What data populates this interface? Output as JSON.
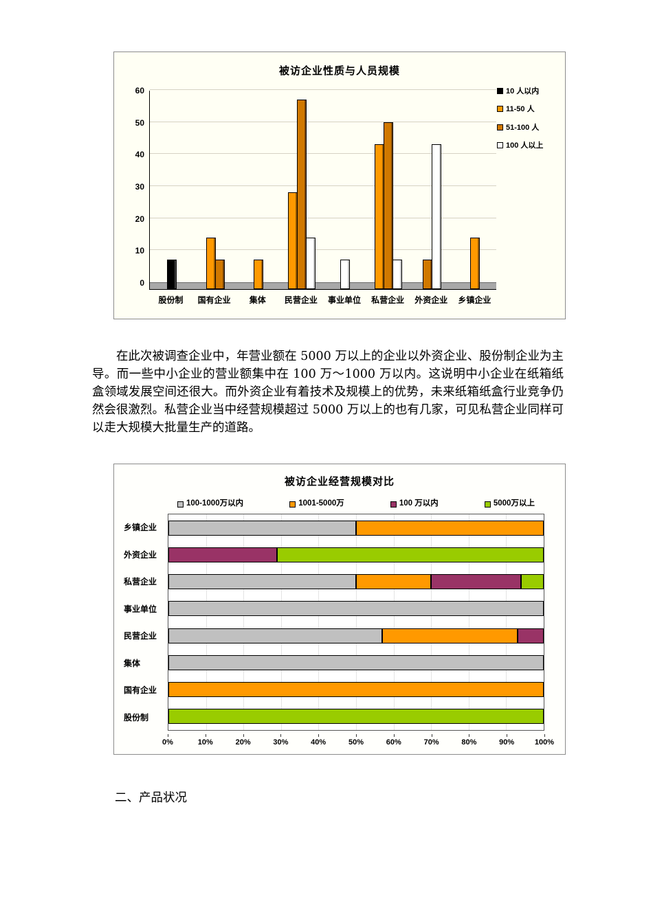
{
  "document": {
    "paragraph": "在此次被调查企业中，年营业额在 5000 万以上的企业以外资企业、股份制企业为主导。而一些中小企业的营业额集中在 100 万～1000 万以内。这说明中小企业在纸箱纸盒领域发展空间还很大。而外资企业有着技术及规模上的优势，未来纸箱纸盒行业竞争仍然会很激烈。私营企业当中经营规模超过 5000 万以上的也有几家，可见私营企业同样可以走大规模大批量生产的道路。",
    "section_heading": "二、产品状况"
  },
  "chart_data": [
    {
      "type": "bar",
      "title": "被访企业性质与人员规模",
      "categories": [
        "股份制",
        "国有企业",
        "集体",
        "民营企业",
        "事业单位",
        "私营企业",
        "外资企业",
        "乡镇企业"
      ],
      "xlabel": "",
      "ylabel": "",
      "ylim": [
        0,
        60
      ],
      "yticks": [
        0,
        10,
        20,
        30,
        40,
        50,
        60
      ],
      "grid": true,
      "legend_position": "right",
      "series": [
        {
          "name": "10 人以内",
          "color": "#000000",
          "side": "#404040",
          "values": [
            7,
            0,
            0,
            0,
            0,
            0,
            0,
            0
          ]
        },
        {
          "name": "11-50 人",
          "color": "#FF9900",
          "side": "#995B00",
          "values": [
            0,
            14,
            7,
            28,
            0,
            43,
            0,
            14
          ]
        },
        {
          "name": "51-100 人",
          "color": "#D07800",
          "side": "#7C4700",
          "values": [
            0,
            7,
            0,
            57,
            0,
            50,
            7,
            0
          ]
        },
        {
          "name": "100 人以上",
          "color": "#FFFFFF",
          "side": "#C4C4C4",
          "values": [
            0,
            0,
            0,
            14,
            7,
            7,
            43,
            0
          ]
        }
      ]
    },
    {
      "type": "bar-horizontal-stacked-100",
      "title": "被访企业经营规模对比",
      "categories": [
        "乡镇企业",
        "外资企业",
        "私营企业",
        "事业单位",
        "民营企业",
        "集体",
        "国有企业",
        "股份制"
      ],
      "xlim": [
        0,
        100
      ],
      "xticks": [
        "0%",
        "10%",
        "20%",
        "30%",
        "40%",
        "50%",
        "60%",
        "70%",
        "80%",
        "90%",
        "100%"
      ],
      "grid": true,
      "legend_position": "top",
      "series_legend": [
        {
          "name": "100-1000万以内",
          "color": "#C0C0C0"
        },
        {
          "name": "1001-5000万",
          "color": "#FF9900"
        },
        {
          "name": "100 万以内",
          "color": "#993366"
        },
        {
          "name": "5000万以上",
          "color": "#99CC00"
        }
      ],
      "rows": [
        {
          "category": "乡镇企业",
          "segments": [
            {
              "series": 0,
              "value": 50
            },
            {
              "series": 1,
              "value": 50
            }
          ]
        },
        {
          "category": "外资企业",
          "segments": [
            {
              "series": 2,
              "value": 29
            },
            {
              "series": 3,
              "value": 71
            }
          ]
        },
        {
          "category": "私营企业",
          "segments": [
            {
              "series": 0,
              "value": 50
            },
            {
              "series": 1,
              "value": 20
            },
            {
              "series": 2,
              "value": 24
            },
            {
              "series": 3,
              "value": 6
            }
          ]
        },
        {
          "category": "事业单位",
          "segments": [
            {
              "series": 0,
              "value": 100
            }
          ]
        },
        {
          "category": "民营企业",
          "segments": [
            {
              "series": 0,
              "value": 57
            },
            {
              "series": 1,
              "value": 36
            },
            {
              "series": 2,
              "value": 7
            }
          ]
        },
        {
          "category": "集体",
          "segments": [
            {
              "series": 0,
              "value": 100
            }
          ]
        },
        {
          "category": "国有企业",
          "segments": [
            {
              "series": 1,
              "value": 100
            }
          ]
        },
        {
          "category": "股份制",
          "segments": [
            {
              "series": 3,
              "value": 100
            }
          ]
        }
      ]
    }
  ]
}
